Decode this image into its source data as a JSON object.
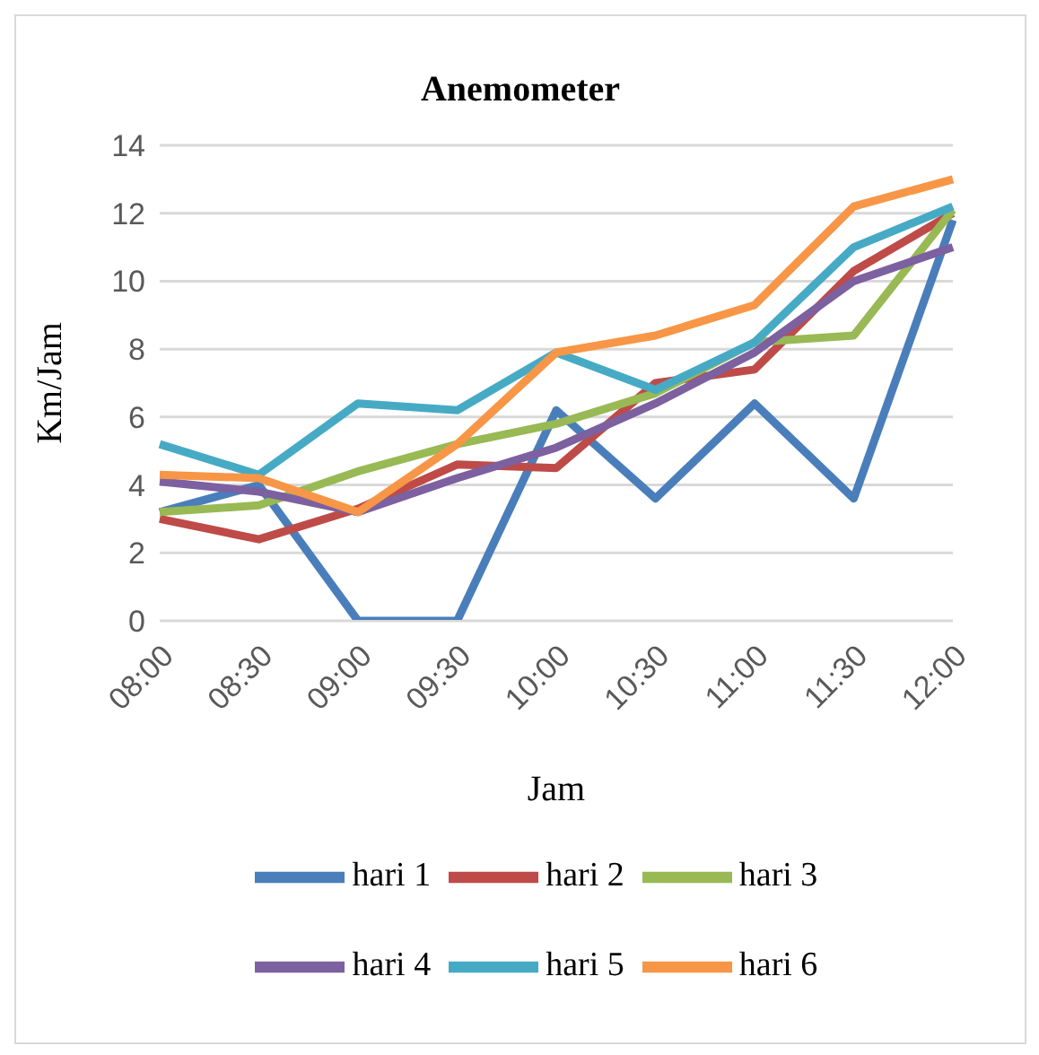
{
  "chart_data": {
    "type": "line",
    "title": "Anemometer",
    "xlabel": "Jam",
    "ylabel": "Km/Jam",
    "categories": [
      "08:00",
      "08:30",
      "09:00",
      "09:30",
      "10:00",
      "10:30",
      "11:00",
      "11:30",
      "12:00"
    ],
    "series": [
      {
        "name": "hari 1",
        "color": "#4a7ebb",
        "values": [
          3.2,
          4.0,
          0,
          0,
          6.2,
          3.6,
          6.4,
          3.6,
          11.8
        ]
      },
      {
        "name": "hari 2",
        "color": "#be4b48",
        "values": [
          3.0,
          2.4,
          3.3,
          4.6,
          4.5,
          7.0,
          7.4,
          10.3,
          12.0
        ]
      },
      {
        "name": "hari 3",
        "color": "#98b954",
        "values": [
          3.2,
          3.4,
          4.4,
          5.2,
          5.8,
          6.7,
          8.2,
          8.4,
          12.1
        ]
      },
      {
        "name": "hari 4",
        "color": "#7d60a0",
        "values": [
          4.1,
          3.8,
          3.2,
          4.2,
          5.1,
          6.4,
          7.9,
          10.0,
          11.0
        ]
      },
      {
        "name": "hari 5",
        "color": "#46aac5",
        "values": [
          5.2,
          4.3,
          6.4,
          6.2,
          7.9,
          6.8,
          8.2,
          11.0,
          12.2
        ]
      },
      {
        "name": "hari 6",
        "color": "#f79646",
        "values": [
          4.3,
          4.2,
          3.2,
          5.2,
          7.9,
          8.4,
          9.3,
          12.2,
          13.0
        ]
      }
    ],
    "ylim": [
      0,
      14
    ],
    "yticks": [
      0,
      2,
      4,
      6,
      8,
      10,
      12,
      14
    ],
    "grid": "y",
    "legend": "bottom",
    "marker": "none",
    "line_style": "solid"
  }
}
